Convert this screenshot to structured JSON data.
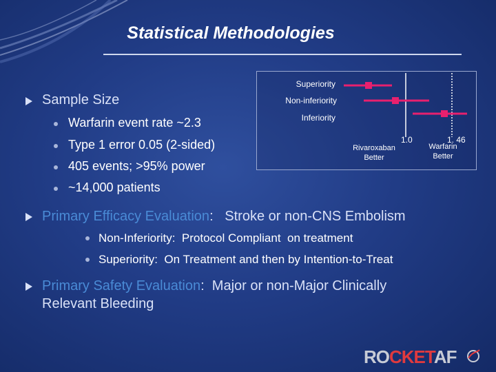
{
  "slide": {
    "title": "Statistical Methodologies"
  },
  "diagram": {
    "rows": [
      "Superiority",
      "Non-inferiority",
      "Inferiority"
    ],
    "tick_1": "1.0",
    "tick_2": "1. 46",
    "left_label_1": "Rivaroxaban",
    "left_label_2": "Better",
    "right_label_1": "Warfarin",
    "right_label_2": "Better",
    "marker_color": "#e8206e"
  },
  "section1": {
    "heading": "Sample Size",
    "bullets": [
      "Warfarin event rate ~2.3",
      "Type 1 error 0.05 (2-sided)",
      "405 events; >95% power",
      "~14,000 patients"
    ]
  },
  "section2": {
    "heading_highlight": "Primary Efficacy Evaluation",
    "heading_rest": ":   Stroke or non-CNS Embolism",
    "bullets": [
      "Non-Inferiority:  Protocol Compliant  on treatment",
      "Superiority:  On Treatment and then by Intention-to-Treat"
    ]
  },
  "section3": {
    "heading_highlight": "Primary Safety Evaluation",
    "heading_rest": ":  Major or non-Major Clinically",
    "heading_line2": "Relevant Bleeding"
  },
  "logo": {
    "part1": "RO",
    "part2": "CKET",
    "part3": "AF"
  }
}
